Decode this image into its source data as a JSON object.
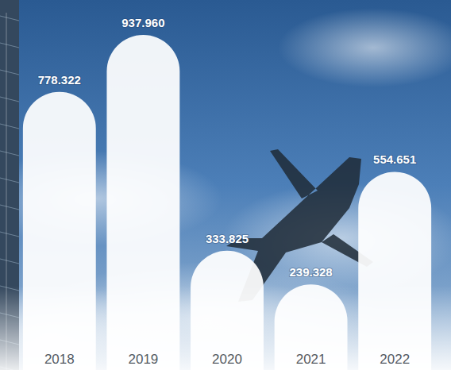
{
  "chart_data": {
    "type": "bar",
    "categories": [
      "2018",
      "2019",
      "2020",
      "2021",
      "2022"
    ],
    "values": [
      778322,
      937960,
      333825,
      239328,
      554651
    ],
    "value_labels": [
      "778.322",
      "937.960",
      "333.825",
      "239.328",
      "554.651"
    ],
    "color": "#ffffff",
    "ylim": [
      0,
      1000000
    ],
    "data_labels": true,
    "tick_labels": "x"
  }
}
